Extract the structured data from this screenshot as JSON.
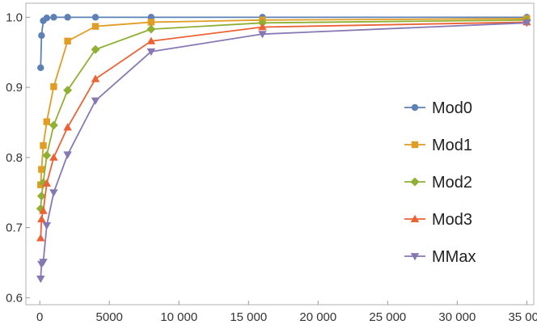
{
  "chart_data": {
    "type": "line",
    "title": "",
    "xlabel": "",
    "ylabel": "",
    "xlim": [
      -1000,
      35500
    ],
    "ylim": [
      0.59,
      1.02
    ],
    "x_ticks": [
      0,
      5000,
      10000,
      15000,
      20000,
      25000,
      30000,
      35000
    ],
    "x_tick_labels": [
      "0",
      "5000",
      "10 000",
      "15 000",
      "20 000",
      "25 000",
      "30 000",
      "35 000"
    ],
    "y_ticks": [
      0.6,
      0.7,
      0.8,
      0.9,
      1.0
    ],
    "y_tick_labels": [
      "0.6",
      "0.7",
      "0.8",
      "0.9",
      "1.0"
    ],
    "grid": false,
    "legend_position": "right",
    "series": [
      {
        "name": "Mod0",
        "color": "#5e81b5",
        "marker": "circle",
        "points": [
          [
            62,
            0.928
          ],
          [
            125,
            0.974
          ],
          [
            250,
            0.995
          ],
          [
            500,
            0.999
          ],
          [
            1000,
            1.0
          ],
          [
            2000,
            1.0
          ],
          [
            4000,
            1.0
          ],
          [
            8000,
            1.0
          ],
          [
            16000,
            1.0
          ],
          [
            35000,
            1.0
          ]
        ]
      },
      {
        "name": "Mod1",
        "color": "#e19c24",
        "marker": "square",
        "points": [
          [
            62,
            0.761
          ],
          [
            125,
            0.783
          ],
          [
            250,
            0.817
          ],
          [
            500,
            0.851
          ],
          [
            1000,
            0.901
          ],
          [
            2000,
            0.966
          ],
          [
            4000,
            0.987
          ],
          [
            8000,
            0.993
          ],
          [
            16000,
            0.996
          ],
          [
            35000,
            0.998
          ]
        ]
      },
      {
        "name": "Mod2",
        "color": "#8fb032",
        "marker": "diamond",
        "points": [
          [
            62,
            0.727
          ],
          [
            125,
            0.745
          ],
          [
            250,
            0.764
          ],
          [
            500,
            0.803
          ],
          [
            1000,
            0.846
          ],
          [
            2000,
            0.896
          ],
          [
            4000,
            0.954
          ],
          [
            8000,
            0.983
          ],
          [
            16000,
            0.992
          ],
          [
            35000,
            0.996
          ]
        ]
      },
      {
        "name": "Mod3",
        "color": "#eb6235",
        "marker": "triangle-up",
        "points": [
          [
            62,
            0.685
          ],
          [
            125,
            0.712
          ],
          [
            250,
            0.724
          ],
          [
            500,
            0.763
          ],
          [
            1000,
            0.8
          ],
          [
            2000,
            0.843
          ],
          [
            4000,
            0.912
          ],
          [
            8000,
            0.966
          ],
          [
            16000,
            0.986
          ],
          [
            35000,
            0.993
          ]
        ]
      },
      {
        "name": "MMax",
        "color": "#8778b3",
        "marker": "triangle-down",
        "points": [
          [
            62,
            0.627
          ],
          [
            125,
            0.648
          ],
          [
            250,
            0.651
          ],
          [
            500,
            0.703
          ],
          [
            1000,
            0.75
          ],
          [
            2000,
            0.804
          ],
          [
            4000,
            0.881
          ],
          [
            8000,
            0.951
          ],
          [
            16000,
            0.976
          ],
          [
            35000,
            0.992
          ]
        ]
      }
    ]
  }
}
